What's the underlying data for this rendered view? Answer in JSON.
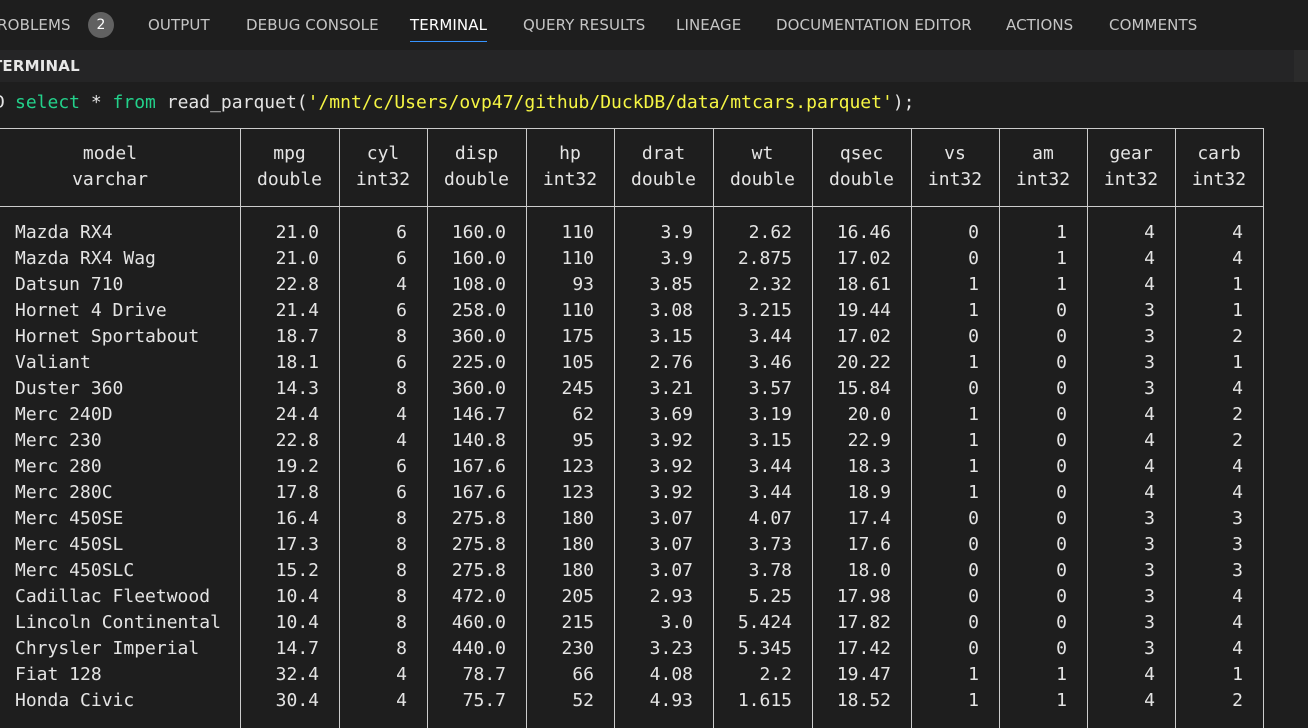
{
  "tabs": [
    {
      "label": "PROBLEMS",
      "badge": "2"
    },
    {
      "label": "OUTPUT"
    },
    {
      "label": "DEBUG CONSOLE"
    },
    {
      "label": "TERMINAL",
      "active": true
    },
    {
      "label": "QUERY RESULTS"
    },
    {
      "label": "LINEAGE"
    },
    {
      "label": "DOCUMENTATION EDITOR"
    },
    {
      "label": "ACTIONS"
    },
    {
      "label": "COMMENTS"
    }
  ],
  "section_title": "TERMINAL",
  "terminal": {
    "prompt_symbol": "D",
    "command": {
      "kw1": "select",
      "mid1": " * ",
      "kw2": "from",
      "mid2": " read_parquet(",
      "path": "'/mnt/c/Users/ovp47/github/DuckDB/data/mtcars.parquet'",
      "end": ");"
    }
  },
  "table": {
    "columns": [
      {
        "name": "model",
        "type": "varchar"
      },
      {
        "name": "mpg",
        "type": "double"
      },
      {
        "name": "cyl",
        "type": "int32"
      },
      {
        "name": "disp",
        "type": "double"
      },
      {
        "name": "hp",
        "type": "int32"
      },
      {
        "name": "drat",
        "type": "double"
      },
      {
        "name": "wt",
        "type": "double"
      },
      {
        "name": "qsec",
        "type": "double"
      },
      {
        "name": "vs",
        "type": "int32"
      },
      {
        "name": "am",
        "type": "int32"
      },
      {
        "name": "gear",
        "type": "int32"
      },
      {
        "name": "carb",
        "type": "int32"
      }
    ],
    "rows": [
      [
        "Mazda RX4",
        "21.0",
        "6",
        "160.0",
        "110",
        "3.9",
        "2.62",
        "16.46",
        "0",
        "1",
        "4",
        "4"
      ],
      [
        "Mazda RX4 Wag",
        "21.0",
        "6",
        "160.0",
        "110",
        "3.9",
        "2.875",
        "17.02",
        "0",
        "1",
        "4",
        "4"
      ],
      [
        "Datsun 710",
        "22.8",
        "4",
        "108.0",
        "93",
        "3.85",
        "2.32",
        "18.61",
        "1",
        "1",
        "4",
        "1"
      ],
      [
        "Hornet 4 Drive",
        "21.4",
        "6",
        "258.0",
        "110",
        "3.08",
        "3.215",
        "19.44",
        "1",
        "0",
        "3",
        "1"
      ],
      [
        "Hornet Sportabout",
        "18.7",
        "8",
        "360.0",
        "175",
        "3.15",
        "3.44",
        "17.02",
        "0",
        "0",
        "3",
        "2"
      ],
      [
        "Valiant",
        "18.1",
        "6",
        "225.0",
        "105",
        "2.76",
        "3.46",
        "20.22",
        "1",
        "0",
        "3",
        "1"
      ],
      [
        "Duster 360",
        "14.3",
        "8",
        "360.0",
        "245",
        "3.21",
        "3.57",
        "15.84",
        "0",
        "0",
        "3",
        "4"
      ],
      [
        "Merc 240D",
        "24.4",
        "4",
        "146.7",
        "62",
        "3.69",
        "3.19",
        "20.0",
        "1",
        "0",
        "4",
        "2"
      ],
      [
        "Merc 230",
        "22.8",
        "4",
        "140.8",
        "95",
        "3.92",
        "3.15",
        "22.9",
        "1",
        "0",
        "4",
        "2"
      ],
      [
        "Merc 280",
        "19.2",
        "6",
        "167.6",
        "123",
        "3.92",
        "3.44",
        "18.3",
        "1",
        "0",
        "4",
        "4"
      ],
      [
        "Merc 280C",
        "17.8",
        "6",
        "167.6",
        "123",
        "3.92",
        "3.44",
        "18.9",
        "1",
        "0",
        "4",
        "4"
      ],
      [
        "Merc 450SE",
        "16.4",
        "8",
        "275.8",
        "180",
        "3.07",
        "4.07",
        "17.4",
        "0",
        "0",
        "3",
        "3"
      ],
      [
        "Merc 450SL",
        "17.3",
        "8",
        "275.8",
        "180",
        "3.07",
        "3.73",
        "17.6",
        "0",
        "0",
        "3",
        "3"
      ],
      [
        "Merc 450SLC",
        "15.2",
        "8",
        "275.8",
        "180",
        "3.07",
        "3.78",
        "18.0",
        "0",
        "0",
        "3",
        "3"
      ],
      [
        "Cadillac Fleetwood",
        "10.4",
        "8",
        "472.0",
        "205",
        "2.93",
        "5.25",
        "17.98",
        "0",
        "0",
        "3",
        "4"
      ],
      [
        "Lincoln Continental",
        "10.4",
        "8",
        "460.0",
        "215",
        "3.0",
        "5.424",
        "17.82",
        "0",
        "0",
        "3",
        "4"
      ],
      [
        "Chrysler Imperial",
        "14.7",
        "8",
        "440.0",
        "230",
        "3.23",
        "5.345",
        "17.42",
        "0",
        "0",
        "3",
        "4"
      ],
      [
        "Fiat 128",
        "32.4",
        "4",
        "78.7",
        "66",
        "4.08",
        "2.2",
        "19.47",
        "1",
        "1",
        "4",
        "1"
      ],
      [
        "Honda Civic",
        "30.4",
        "4",
        "75.7",
        "52",
        "4.93",
        "1.615",
        "18.52",
        "1",
        "1",
        "4",
        "2"
      ]
    ]
  }
}
